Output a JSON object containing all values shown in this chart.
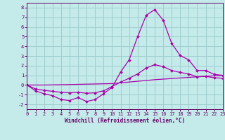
{
  "xlabel": "Windchill (Refroidissement éolien,°C)",
  "background_color": "#c4eaea",
  "grid_color": "#9ecece",
  "line_color": "#aa00aa",
  "xlim": [
    0,
    23
  ],
  "ylim": [
    -2.5,
    8.5
  ],
  "xticks": [
    0,
    1,
    2,
    3,
    4,
    5,
    6,
    7,
    8,
    9,
    10,
    11,
    12,
    13,
    14,
    15,
    16,
    17,
    18,
    19,
    20,
    21,
    22,
    23
  ],
  "yticks": [
    -2,
    -1,
    0,
    1,
    2,
    3,
    4,
    5,
    6,
    7,
    8
  ],
  "series1_x": [
    0,
    1,
    2,
    3,
    4,
    5,
    6,
    7,
    8,
    9,
    10,
    11,
    12,
    13,
    14,
    15,
    16,
    17,
    18,
    19,
    20,
    21,
    22,
    23
  ],
  "series1_y": [
    0,
    -0.6,
    -0.9,
    -1.1,
    -1.5,
    -1.6,
    -1.3,
    -1.7,
    -1.5,
    -0.9,
    -0.25,
    1.35,
    2.6,
    5.0,
    7.2,
    7.8,
    6.7,
    4.3,
    3.05,
    2.6,
    1.5,
    1.5,
    1.1,
    1.0
  ],
  "series2_x": [
    0,
    1,
    2,
    3,
    4,
    5,
    6,
    7,
    8,
    9,
    10,
    11,
    12,
    13,
    14,
    15,
    16,
    17,
    18,
    19,
    20,
    21,
    22,
    23
  ],
  "series2_y": [
    0,
    -0.4,
    -0.55,
    -0.65,
    -0.75,
    -0.8,
    -0.75,
    -0.85,
    -0.8,
    -0.6,
    -0.15,
    0.3,
    0.7,
    1.15,
    1.75,
    2.1,
    1.9,
    1.5,
    1.3,
    1.15,
    0.85,
    0.9,
    0.75,
    0.7
  ],
  "series3_x": [
    0,
    2,
    5,
    10,
    15,
    20,
    23
  ],
  "series3_y": [
    0,
    0.0,
    0.05,
    0.15,
    0.55,
    0.85,
    1.0
  ],
  "marker": "D",
  "markersize": 2,
  "linewidth": 0.9,
  "tick_fontsize": 5.0,
  "xlabel_fontsize": 5.5
}
